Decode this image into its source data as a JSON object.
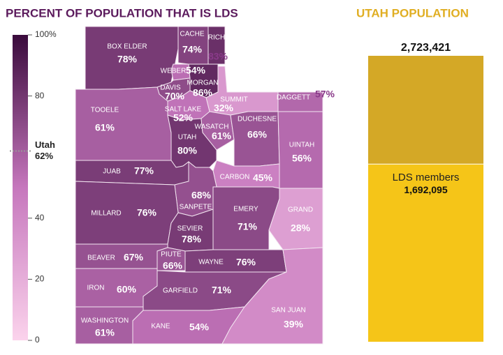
{
  "chart_data": [
    {
      "type": "choropleth",
      "title": "PERCENT OF POPULATION THAT IS LDS",
      "categories": [
        "BOX ELDER",
        "CACHE",
        "RICH",
        "WEBER",
        "MORGAN",
        "DAVIS",
        "SUMMIT",
        "DAGGETT",
        "SALT LAKE",
        "TOOELE",
        "UTAH",
        "WASATCH",
        "DUCHESNE",
        "UINTAH",
        "JUAB",
        "CARBON",
        "SANPETE",
        "MILLARD",
        "EMERY",
        "GRAND",
        "SEVIER",
        "BEAVER",
        "PIUTE",
        "WAYNE",
        "IRON",
        "GARFIELD",
        "WASHINGTON",
        "KANE",
        "SAN JUAN"
      ],
      "values": [
        78,
        74,
        83,
        54,
        86,
        70,
        32,
        57,
        52,
        61,
        80,
        61,
        66,
        56,
        77,
        45,
        68,
        76,
        71,
        28,
        78,
        67,
        66,
        76,
        60,
        71,
        61,
        54,
        39
      ],
      "value_labels": [
        "78%",
        "74%",
        "83%",
        "54%",
        "86%",
        "70%",
        "32%",
        "57%",
        "52%",
        "61%",
        "80%",
        "61%",
        "66%",
        "56%",
        "77%",
        "45%",
        "68%",
        "76%",
        "71%",
        "28%",
        "78%",
        "67%",
        "66%",
        "76%",
        "60%",
        "71%",
        "61%",
        "54%",
        "39%"
      ],
      "colors": [
        "#fbd3ec",
        "#c677bd",
        "#3a0b3c"
      ],
      "clim": [
        0,
        100
      ],
      "ticks": [
        0,
        20,
        40,
        80,
        {
          "value": 100,
          "label": "100%"
        }
      ],
      "state_average": {
        "label": "Utah",
        "value": 62,
        "value_label": "62%"
      }
    },
    {
      "type": "bar",
      "title": "UTAH POPULATION",
      "total": {
        "value": 2723421,
        "label": "2,723,421"
      },
      "total_color": "#d4a826",
      "series": [
        {
          "name": "LDS members",
          "values": [
            1692095
          ],
          "value_labels": [
            "1,692,095"
          ],
          "color": "#f5c518"
        }
      ]
    }
  ]
}
